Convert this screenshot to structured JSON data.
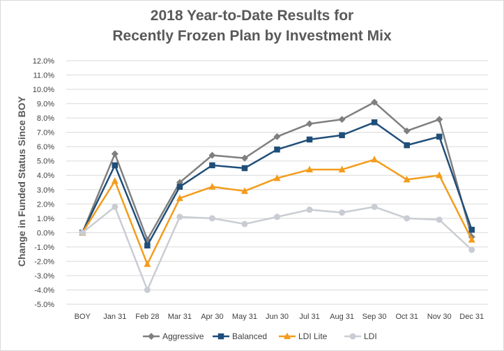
{
  "chart_data": {
    "type": "line",
    "title_lines": [
      "2018 Year-to-Date Results for",
      "Recently Frozen Plan by Investment Mix"
    ],
    "xlabel": "",
    "ylabel": "Change in Funded Status Since BOY",
    "categories": [
      "BOY",
      "Jan 31",
      "Feb 28",
      "Mar 31",
      "Apr 30",
      "May 31",
      "Jun 30",
      "Jul 31",
      "Aug 31",
      "Sep 30",
      "Oct 31",
      "Nov 30",
      "Dec 31"
    ],
    "ylim": [
      -5.0,
      12.0
    ],
    "ytick_step": 1.0,
    "ytick_format": "percent_1dp",
    "grid": "horizontal",
    "legend_position": "bottom",
    "series": [
      {
        "name": "Aggressive",
        "color": "#7f7f7f",
        "marker": "diamond",
        "values": [
          0.0,
          5.5,
          -0.5,
          3.5,
          5.4,
          5.2,
          6.7,
          7.6,
          7.9,
          9.1,
          7.1,
          7.9,
          -0.3
        ]
      },
      {
        "name": "Balanced",
        "color": "#1f4e79",
        "marker": "square",
        "values": [
          0.0,
          4.7,
          -0.9,
          3.2,
          4.7,
          4.5,
          5.8,
          6.5,
          6.8,
          7.7,
          6.1,
          6.7,
          0.2
        ]
      },
      {
        "name": "LDI Lite",
        "color": "#f39c1c",
        "marker": "triangle",
        "values": [
          0.0,
          3.6,
          -2.2,
          2.4,
          3.2,
          2.9,
          3.8,
          4.4,
          4.4,
          5.1,
          3.7,
          4.0,
          -0.5
        ]
      },
      {
        "name": "LDI",
        "color": "#c9cdd3",
        "marker": "circle",
        "values": [
          0.0,
          1.8,
          -4.0,
          1.1,
          1.0,
          0.6,
          1.1,
          1.6,
          1.4,
          1.8,
          1.0,
          0.9,
          -1.2
        ]
      }
    ]
  }
}
